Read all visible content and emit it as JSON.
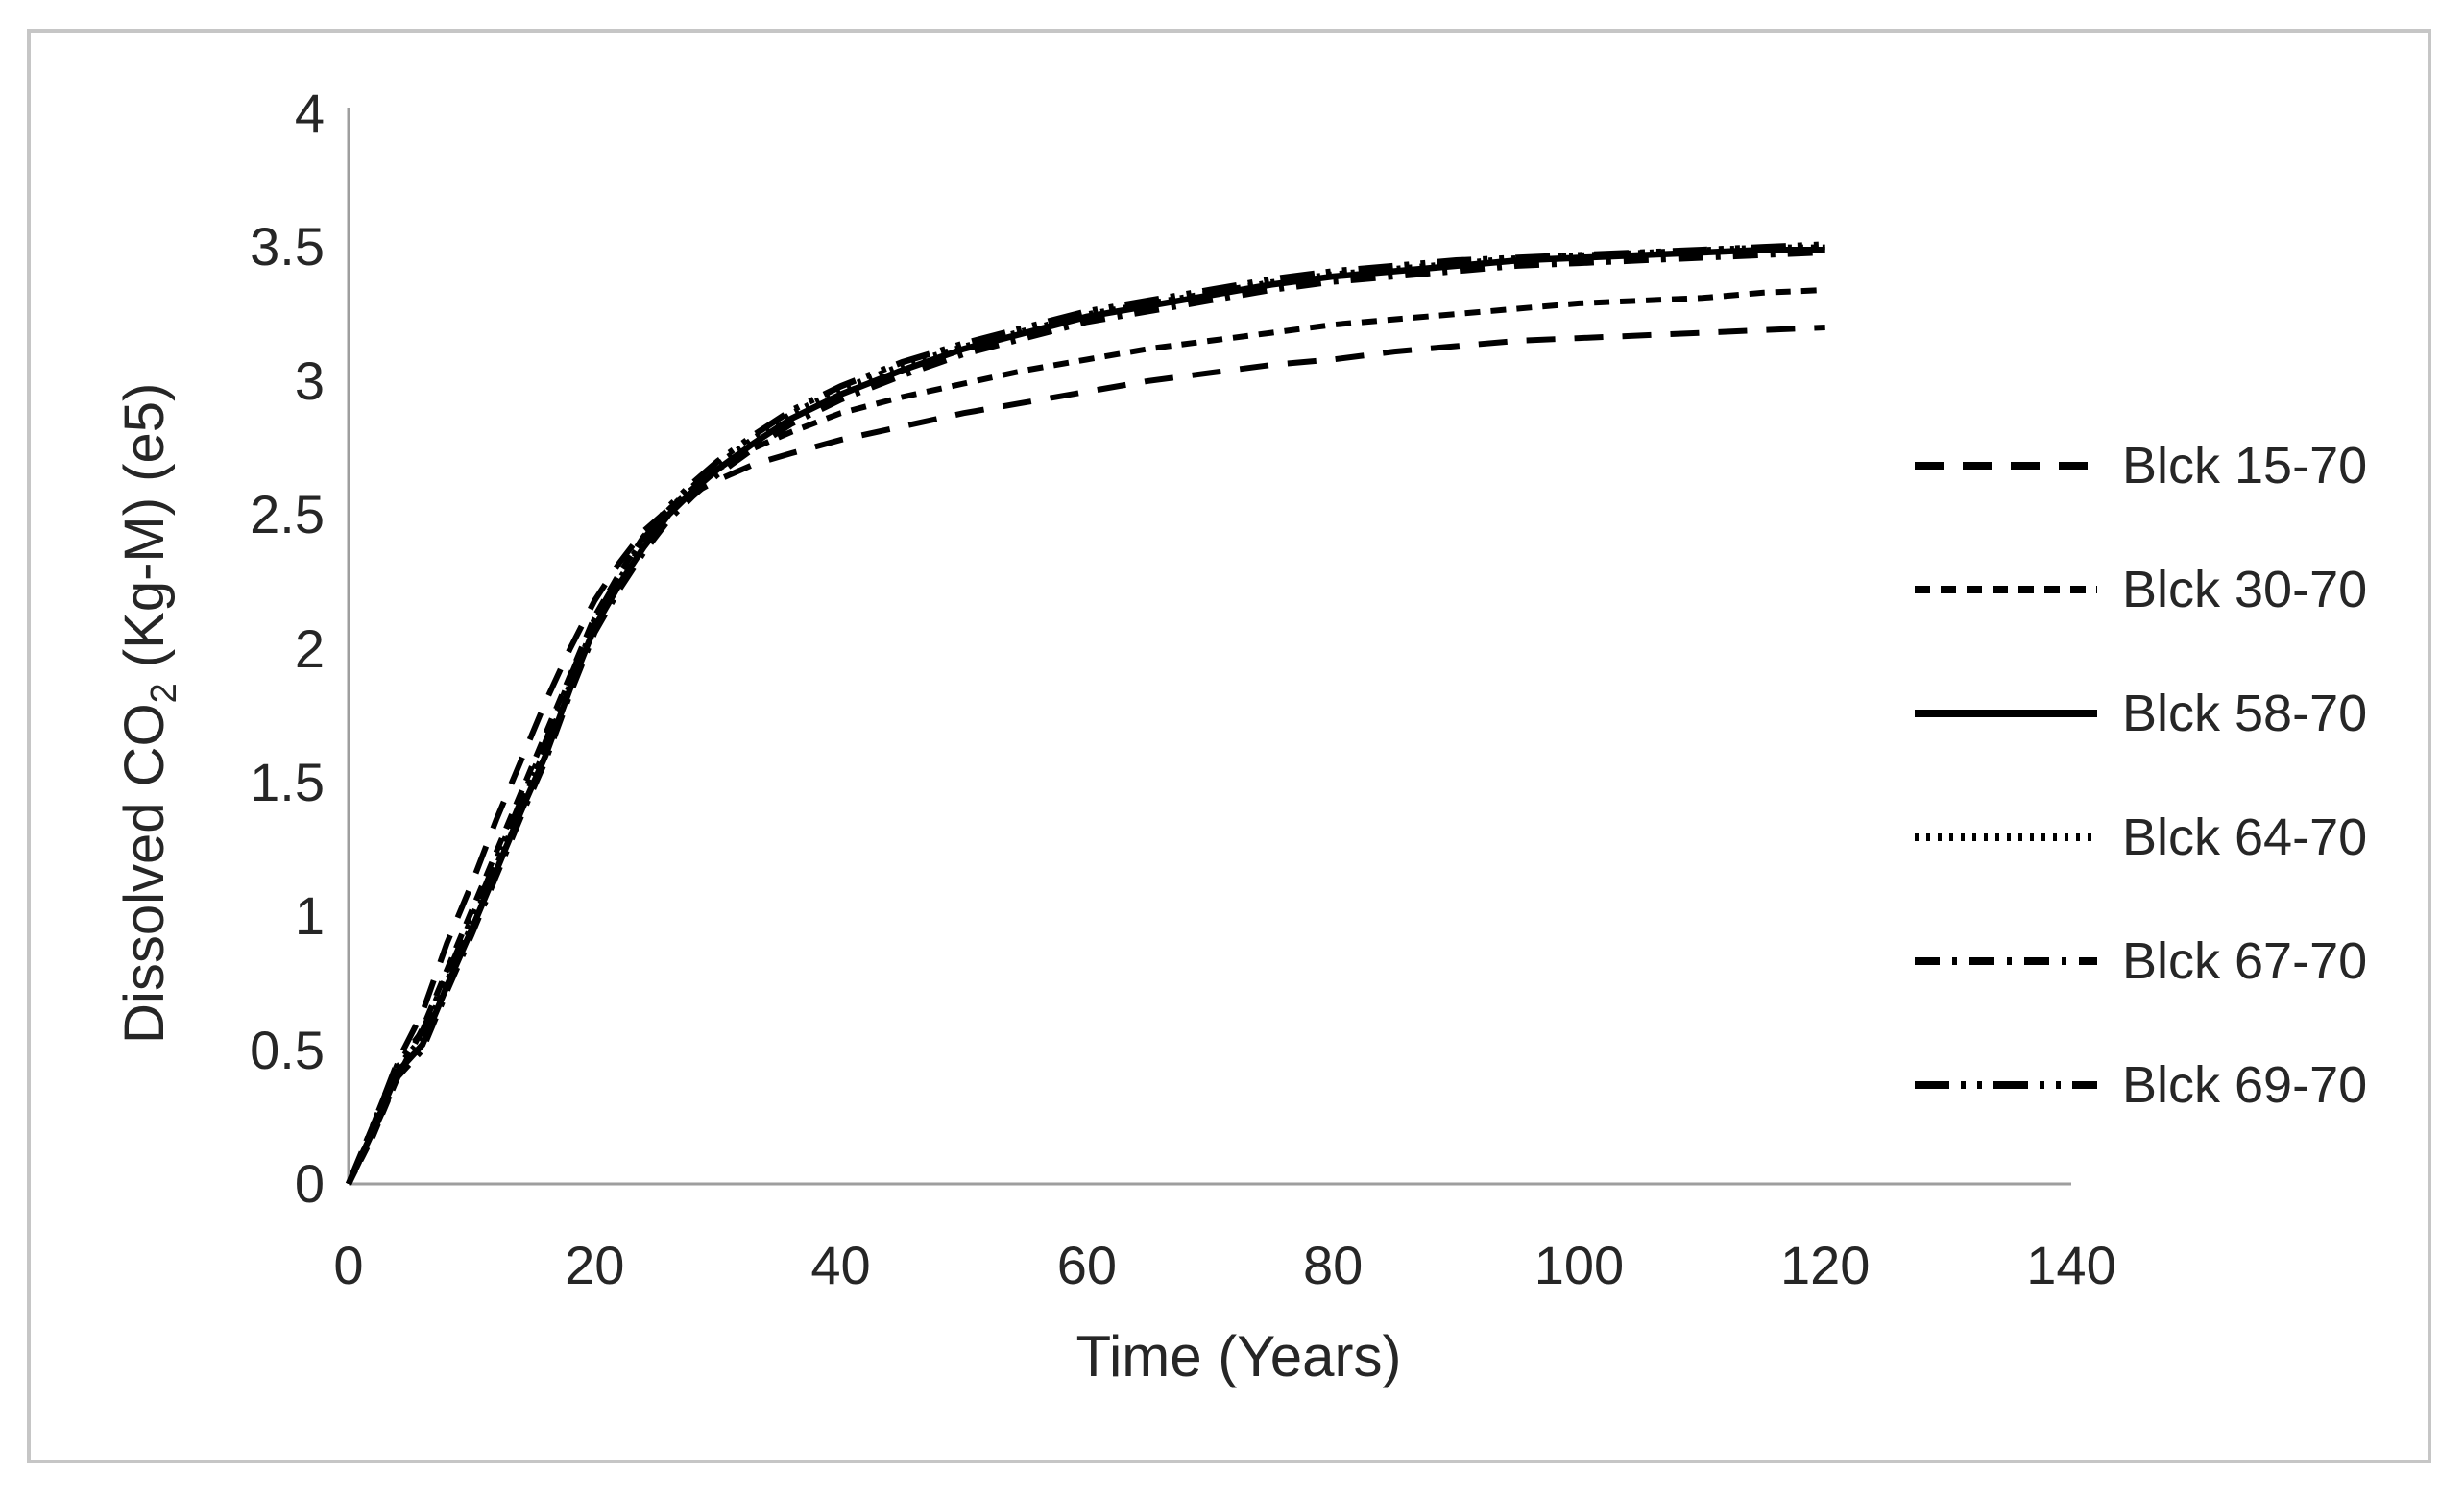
{
  "figure": {
    "background": "#ffffff",
    "frame_border_color": "#c6c6c6",
    "axis_color": "#9e9e9e",
    "text_color": "#262626",
    "line_color": "#000000"
  },
  "chart_data": {
    "type": "line",
    "title": "",
    "xlabel": "Time (Years)",
    "ylabel_pre": "Dissolved CO",
    "ylabel_sub": "2",
    "ylabel_post": " (Kg-M) (e5)",
    "xlim": [
      0,
      140
    ],
    "ylim": [
      0,
      4
    ],
    "grid": false,
    "legend_position": "right",
    "xticks": [
      "0",
      "20",
      "40",
      "60",
      "80",
      "100",
      "120",
      "140"
    ],
    "yticks": [
      "0",
      "0.5",
      "1",
      "1.5",
      "2",
      "2.5",
      "3",
      "3.5",
      "4"
    ],
    "series": [
      {
        "name": "Blck 15-70",
        "line_style": "long-dash",
        "dash": "30 20",
        "stroke_width": 6,
        "x": [
          0,
          2,
          4,
          6,
          8,
          10,
          12,
          14,
          16,
          18,
          20,
          22,
          24,
          26,
          28,
          30,
          33,
          36,
          40,
          45,
          50,
          55,
          60,
          65,
          70,
          75,
          80,
          85,
          90,
          95,
          100,
          105,
          110,
          115,
          120
        ],
        "values": [
          0,
          0.22,
          0.46,
          0.64,
          0.9,
          1.12,
          1.36,
          1.58,
          1.8,
          2.0,
          2.18,
          2.32,
          2.44,
          2.52,
          2.58,
          2.63,
          2.69,
          2.73,
          2.78,
          2.83,
          2.88,
          2.92,
          2.96,
          3.0,
          3.03,
          3.06,
          3.08,
          3.11,
          3.13,
          3.15,
          3.16,
          3.17,
          3.18,
          3.19,
          3.2
        ]
      },
      {
        "name": "Blck 30-70",
        "line_style": "short-dash",
        "dash": "16 11",
        "stroke_width": 6,
        "x": [
          0,
          2,
          4,
          6,
          8,
          10,
          12,
          14,
          16,
          18,
          20,
          22,
          24,
          26,
          28,
          30,
          33,
          36,
          40,
          45,
          50,
          55,
          60,
          65,
          70,
          75,
          80,
          85,
          90,
          95,
          100,
          105,
          110,
          115,
          120
        ],
        "values": [
          0,
          0.18,
          0.4,
          0.58,
          0.8,
          1.02,
          1.24,
          1.46,
          1.68,
          1.9,
          2.12,
          2.28,
          2.42,
          2.52,
          2.6,
          2.67,
          2.75,
          2.81,
          2.88,
          2.94,
          2.99,
          3.04,
          3.08,
          3.12,
          3.15,
          3.18,
          3.21,
          3.23,
          3.25,
          3.27,
          3.29,
          3.3,
          3.31,
          3.33,
          3.34
        ]
      },
      {
        "name": "Blck 58-70",
        "line_style": "solid",
        "dash": "",
        "stroke_width": 6.5,
        "x": [
          0,
          2,
          4,
          6,
          8,
          10,
          12,
          14,
          16,
          18,
          20,
          22,
          24,
          26,
          28,
          30,
          33,
          36,
          40,
          45,
          50,
          55,
          60,
          65,
          70,
          75,
          80,
          85,
          90,
          95,
          100,
          105,
          110,
          115,
          120
        ],
        "values": [
          0,
          0.2,
          0.42,
          0.52,
          0.74,
          0.95,
          1.17,
          1.39,
          1.6,
          1.85,
          2.08,
          2.24,
          2.38,
          2.5,
          2.59,
          2.67,
          2.77,
          2.86,
          2.95,
          3.04,
          3.12,
          3.18,
          3.24,
          3.28,
          3.32,
          3.36,
          3.39,
          3.41,
          3.43,
          3.45,
          3.46,
          3.47,
          3.48,
          3.49,
          3.49
        ]
      },
      {
        "name": "Blck 64-70",
        "line_style": "dotted",
        "dash": "4 8",
        "stroke_width": 5.5,
        "x": [
          0,
          2,
          4,
          6,
          8,
          10,
          12,
          14,
          16,
          18,
          20,
          22,
          24,
          26,
          28,
          30,
          33,
          36,
          40,
          45,
          50,
          55,
          60,
          65,
          70,
          75,
          80,
          85,
          90,
          95,
          100,
          105,
          110,
          115,
          120
        ],
        "values": [
          0,
          0.21,
          0.44,
          0.55,
          0.76,
          0.97,
          1.19,
          1.41,
          1.63,
          1.87,
          2.1,
          2.26,
          2.4,
          2.52,
          2.61,
          2.69,
          2.79,
          2.88,
          2.97,
          3.06,
          3.13,
          3.19,
          3.25,
          3.29,
          3.33,
          3.37,
          3.4,
          3.42,
          3.44,
          3.46,
          3.47,
          3.48,
          3.49,
          3.5,
          3.5
        ]
      },
      {
        "name": "Blck 67-70",
        "line_style": "dash-dot",
        "dash": "26 13 5 13",
        "stroke_width": 6,
        "x": [
          0,
          2,
          4,
          6,
          8,
          10,
          12,
          14,
          16,
          18,
          20,
          22,
          24,
          26,
          28,
          30,
          33,
          36,
          40,
          45,
          50,
          55,
          60,
          65,
          70,
          75,
          80,
          85,
          90,
          95,
          100,
          105,
          110,
          115,
          120
        ],
        "values": [
          0,
          0.19,
          0.4,
          0.5,
          0.72,
          0.93,
          1.15,
          1.37,
          1.58,
          1.83,
          2.06,
          2.22,
          2.36,
          2.48,
          2.57,
          2.65,
          2.75,
          2.84,
          2.93,
          3.02,
          3.1,
          3.16,
          3.22,
          3.26,
          3.3,
          3.34,
          3.37,
          3.39,
          3.41,
          3.43,
          3.44,
          3.45,
          3.46,
          3.47,
          3.48
        ]
      },
      {
        "name": "Blck 69-70",
        "line_style": "long-dash-dot-dot",
        "dash": "36 12 5 12 5 12",
        "stroke_width": 6.5,
        "x": [
          0,
          2,
          4,
          6,
          8,
          10,
          12,
          14,
          16,
          18,
          20,
          22,
          24,
          26,
          28,
          30,
          33,
          36,
          40,
          45,
          50,
          55,
          60,
          65,
          70,
          75,
          80,
          85,
          90,
          95,
          100,
          105,
          110,
          115,
          120
        ],
        "values": [
          0,
          0.22,
          0.45,
          0.57,
          0.78,
          0.99,
          1.21,
          1.43,
          1.65,
          1.89,
          2.11,
          2.27,
          2.41,
          2.53,
          2.62,
          2.7,
          2.8,
          2.89,
          2.98,
          3.07,
          3.14,
          3.2,
          3.26,
          3.3,
          3.34,
          3.38,
          3.41,
          3.43,
          3.45,
          3.46,
          3.47,
          3.48,
          3.49,
          3.5,
          3.51
        ]
      }
    ]
  }
}
